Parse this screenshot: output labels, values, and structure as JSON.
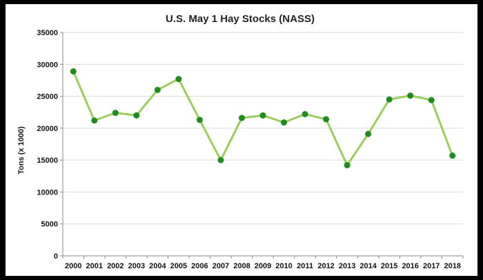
{
  "chart_data": {
    "type": "line",
    "title": "U.S. May 1 Hay Stocks (NASS)",
    "xlabel": "",
    "ylabel": "Tons (x 1000)",
    "ylim": [
      0,
      35000
    ],
    "yticks": [
      0,
      5000,
      10000,
      15000,
      20000,
      25000,
      30000,
      35000
    ],
    "grid": true,
    "categories": [
      "2000",
      "2001",
      "2002",
      "2003",
      "2004",
      "2005",
      "2006",
      "2007",
      "2008",
      "2009",
      "2010",
      "2011",
      "2012",
      "2013",
      "2014",
      "2015",
      "2016",
      "2017",
      "2018"
    ],
    "series": [
      {
        "values": [
          28900,
          21200,
          22400,
          22000,
          26000,
          27700,
          21300,
          15000,
          21600,
          22000,
          20900,
          22200,
          21400,
          14200,
          19100,
          24500,
          25100,
          24400,
          15700
        ]
      }
    ],
    "colors": {
      "line": "#9acd5a",
      "marker": "#1e8c1e",
      "grid": "#d9d9d9",
      "axis": "#888888"
    }
  }
}
